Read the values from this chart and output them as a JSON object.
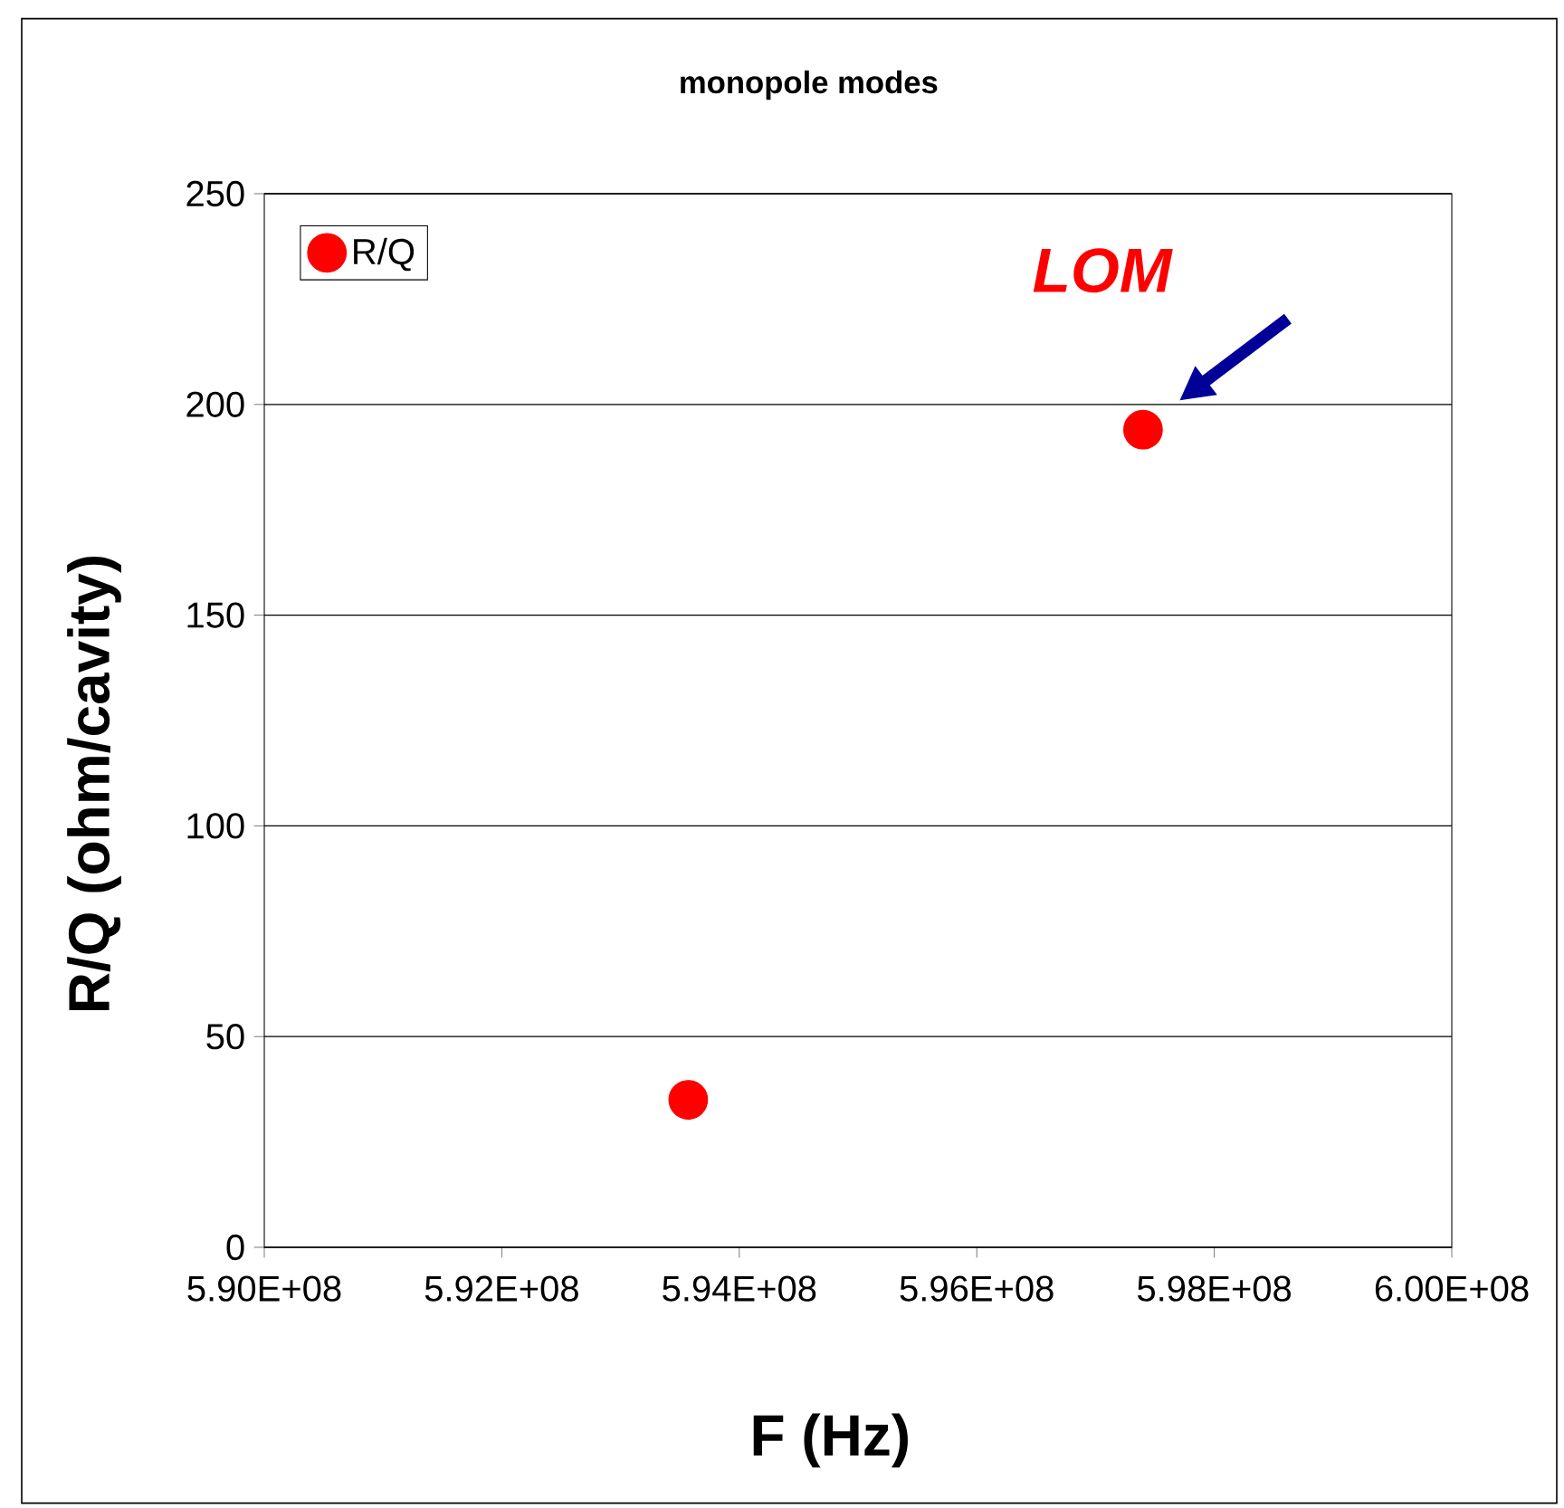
{
  "chart_data": {
    "type": "scatter",
    "title": "monopole modes",
    "xlabel": "F (Hz)",
    "ylabel": "R/Q (ohm/cavity)",
    "x": [
      593570000,
      597400000
    ],
    "series": [
      {
        "name": "R/Q",
        "color": "#ff0000",
        "values": [
          35,
          194
        ]
      }
    ],
    "xlim": [
      590000000,
      600000000
    ],
    "xticks": [
      {
        "value": 590000000,
        "label": "5.90E+08"
      },
      {
        "value": 592000000,
        "label": "5.92E+08"
      },
      {
        "value": 594000000,
        "label": "5.94E+08"
      },
      {
        "value": 596000000,
        "label": "5.96E+08"
      },
      {
        "value": 598000000,
        "label": "5.98E+08"
      },
      {
        "value": 600000000,
        "label": "6.00E+08"
      }
    ],
    "ylim": [
      0,
      250
    ],
    "yticks": [
      0,
      50,
      100,
      150,
      200,
      250
    ],
    "grid": "y",
    "legend": "top left",
    "marker": "circle",
    "annotations": [
      {
        "text": "LOM",
        "x": 597400000,
        "y": 194
      }
    ]
  }
}
